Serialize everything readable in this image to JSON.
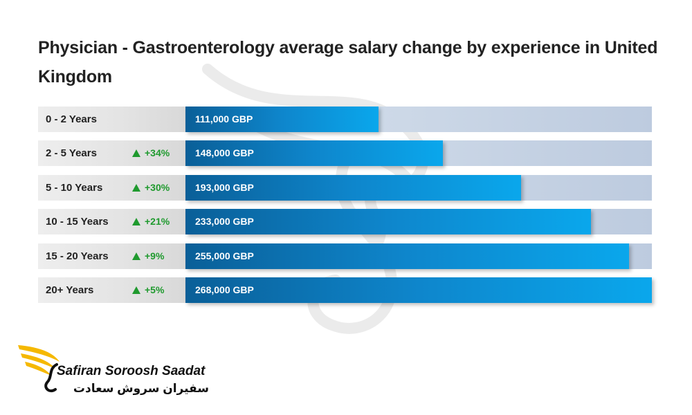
{
  "page": {
    "title": "Physician - Gastroenterology average salary change by experience in United Kingdom"
  },
  "chart_data": {
    "type": "bar",
    "orientation": "horizontal",
    "title": "Physician - Gastroenterology average salary change by experience in United Kingdom",
    "unit": "GBP",
    "xlim": [
      0,
      268000
    ],
    "categories": [
      "0 - 2 Years",
      "2 - 5 Years",
      "5 - 10 Years",
      "10 - 15 Years",
      "15 - 20 Years",
      "20+ Years"
    ],
    "values": [
      111000,
      148000,
      193000,
      233000,
      255000,
      268000
    ],
    "value_labels": [
      "111,000 GBP",
      "148,000 GBP",
      "193,000 GBP",
      "233,000 GBP",
      "255,000 GBP",
      "268,000 GBP"
    ],
    "changes": [
      "",
      "+34%",
      "+30%",
      "+21%",
      "+9%",
      "+5%"
    ],
    "colors": {
      "bar_start": "#0a5f98",
      "bar_end": "#0aa7ec",
      "track": "#c9d6e6",
      "change": "#1f9a2e",
      "label_bg": "#e6e6e6"
    }
  },
  "logo": {
    "brand_en": "Safiran Soroosh Saadat",
    "brand_fa": "سفیران سروش سعادت",
    "icon": "golden-wing-icon",
    "icon_color": "#f5b800"
  }
}
